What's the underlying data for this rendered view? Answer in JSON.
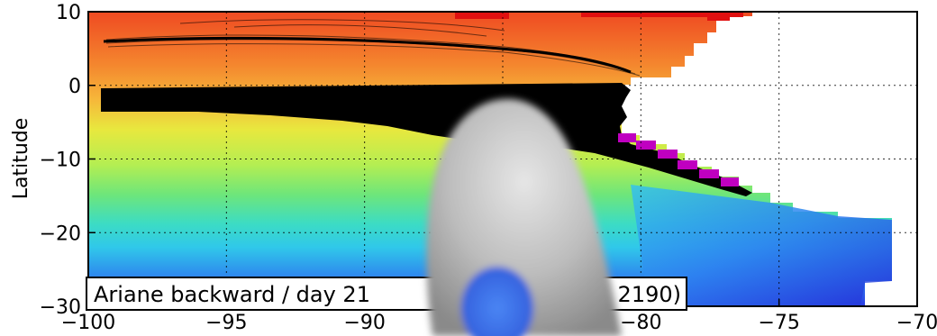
{
  "chart_data": {
    "type": "heatmap",
    "title": "",
    "xlabel": "",
    "ylabel": "Latitude",
    "xlim": [
      -100,
      -70
    ],
    "ylim": [
      -30,
      10
    ],
    "grid": true,
    "x_ticks": [
      -100,
      -95,
      -90,
      -85,
      -80,
      -75,
      -70
    ],
    "y_ticks": [
      -30,
      -20,
      -10,
      0,
      10
    ],
    "x_tick_labels": [
      "−100",
      "−95",
      "−90",
      "",
      "−80",
      "−75",
      "−70"
    ],
    "y_tick_labels": [
      "−30",
      "−20",
      "−10",
      "0",
      "10"
    ],
    "annotation": "Ariane backward / day 21",
    "annotation_tail": "2190)",
    "colors": {
      "warm": "#f26a2c",
      "mid": "#dcec3c",
      "cool": "#2fd8e6",
      "deep": "#2a4ce8",
      "trajectories": "#000000",
      "markers": "#c000c0",
      "red_cells": "#e01010",
      "occluder": "#b8b8b8",
      "occluder_spot": "#3b6ee8"
    }
  }
}
